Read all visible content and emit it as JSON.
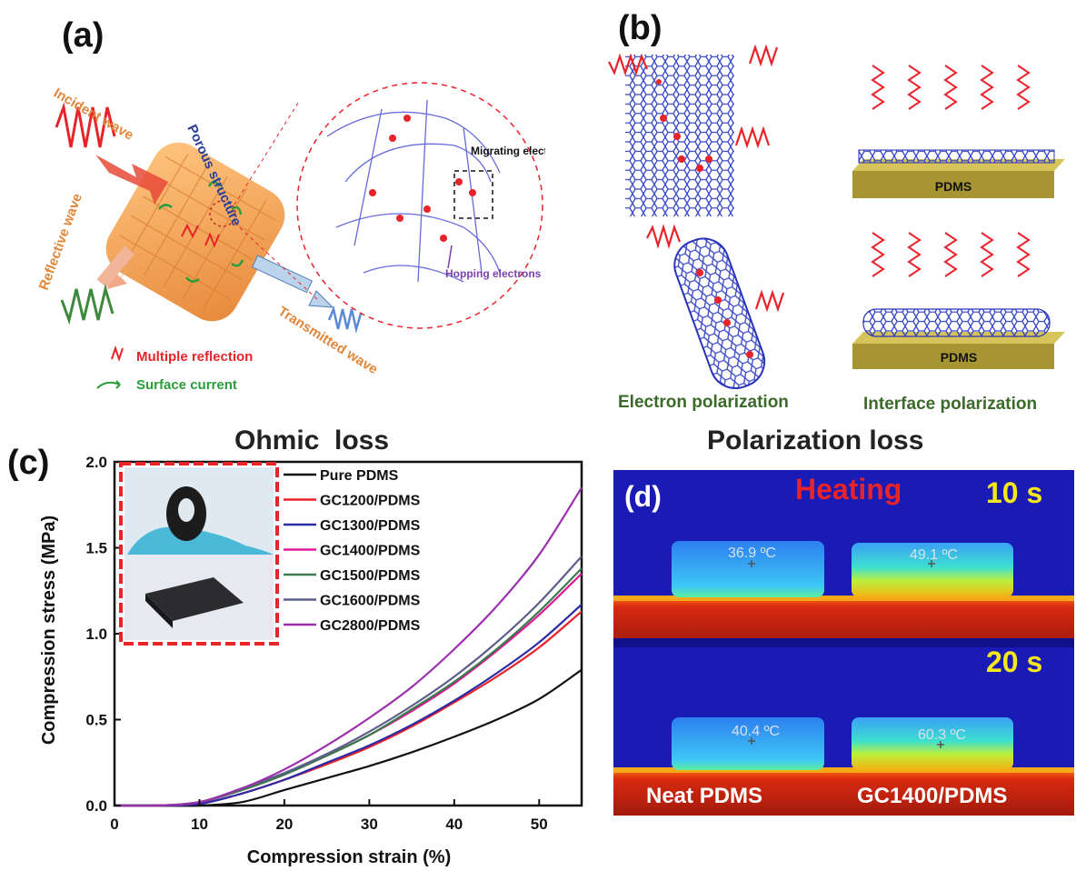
{
  "panel_a": {
    "label": "(a)",
    "incident": "Incident wave",
    "porous": "Porous structure",
    "reflective": "Reflective wave",
    "transmitted": "Transmitted wave",
    "migrating": "Migrating electrons",
    "hopping": "Hopping electrons",
    "legend_multiple": "Multiple  reflection",
    "legend_surface": "Surface current",
    "bottom_title": "Ohmic  loss"
  },
  "panel_b": {
    "label": "(b)",
    "pdms_top": "PDMS",
    "pdms_bottom": "PDMS",
    "electron": "Electron polarization",
    "interface": "Interface polarization",
    "bottom_title": "Polarization loss"
  },
  "panel_c": {
    "label": "(c)"
  },
  "panel_d": {
    "label": "(d)",
    "heating": "Heating",
    "time1": "10 s",
    "time2": "20 s",
    "t1": "36.9 ºC",
    "t2": "49.1 ºC",
    "t3": "40.4 ºC",
    "t4": "60.3 ºC",
    "neat": "Neat PDMS",
    "gc": "GC1400/PDMS"
  },
  "chart_data": {
    "type": "line",
    "xlabel": "Compression strain (%)",
    "ylabel": "Compression stress (MPa)",
    "xlim": [
      0,
      55
    ],
    "ylim": [
      0,
      2.0
    ],
    "xticks": [
      "0",
      "10",
      "20",
      "30",
      "40",
      "50"
    ],
    "yticks": [
      "0.0",
      "0.5",
      "1.0",
      "1.5",
      "2.0"
    ],
    "legend_position": "top-right",
    "x": [
      0,
      5,
      10,
      15,
      20,
      25,
      30,
      35,
      40,
      45,
      50,
      55
    ],
    "series": [
      {
        "name": "Pure PDMS",
        "color": "#111111",
        "values": [
          0,
          0,
          0.0,
          0.02,
          0.09,
          0.16,
          0.23,
          0.31,
          0.4,
          0.5,
          0.62,
          0.79
        ]
      },
      {
        "name": "GC1200/PDMS",
        "color": "#e8232a",
        "values": [
          0,
          0,
          0.01,
          0.07,
          0.15,
          0.24,
          0.34,
          0.46,
          0.6,
          0.75,
          0.92,
          1.13
        ]
      },
      {
        "name": "GC1300/PDMS",
        "color": "#2a2aa8",
        "values": [
          0,
          0,
          0.01,
          0.07,
          0.15,
          0.25,
          0.35,
          0.47,
          0.61,
          0.77,
          0.95,
          1.17
        ]
      },
      {
        "name": "GC1400/PDMS",
        "color": "#e0189c",
        "values": [
          0,
          0,
          0.02,
          0.09,
          0.18,
          0.29,
          0.41,
          0.55,
          0.71,
          0.9,
          1.11,
          1.35
        ]
      },
      {
        "name": "GC1500/PDMS",
        "color": "#3b7a4c",
        "values": [
          0,
          0,
          0.02,
          0.09,
          0.18,
          0.29,
          0.41,
          0.56,
          0.72,
          0.91,
          1.13,
          1.38
        ]
      },
      {
        "name": "GC1600/PDMS",
        "color": "#5d5d8a",
        "values": [
          0,
          0,
          0.02,
          0.1,
          0.19,
          0.3,
          0.43,
          0.58,
          0.75,
          0.95,
          1.18,
          1.45
        ]
      },
      {
        "name": "GC2800/PDMS",
        "color": "#9b2fae",
        "values": [
          0,
          0,
          0.02,
          0.1,
          0.21,
          0.35,
          0.51,
          0.69,
          0.91,
          1.16,
          1.46,
          1.85
        ]
      }
    ]
  }
}
